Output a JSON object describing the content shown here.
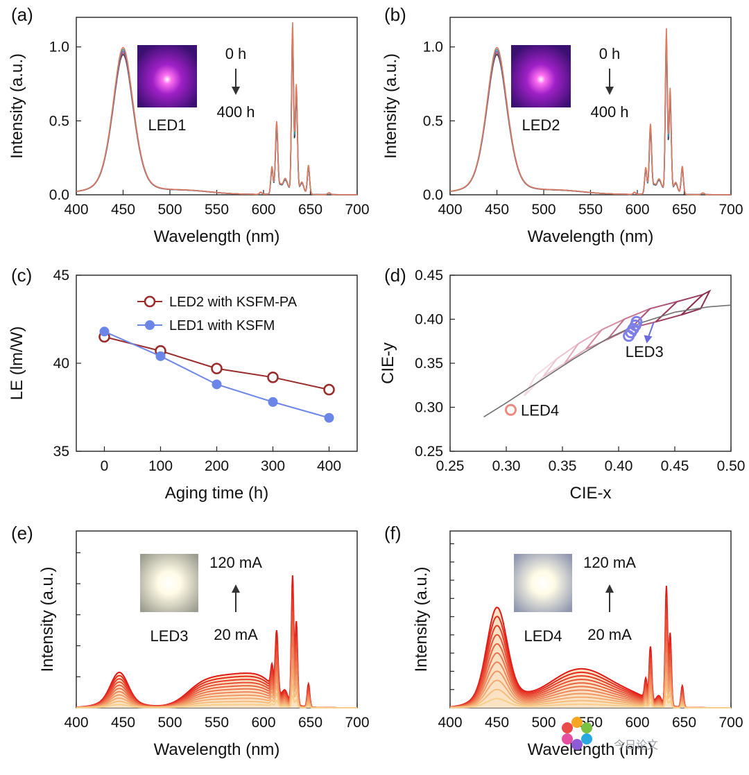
{
  "figure": {
    "panels": [
      {
        "id": "a",
        "letter": "(a)"
      },
      {
        "id": "b",
        "letter": "(b)"
      },
      {
        "id": "c",
        "letter": "(c)"
      },
      {
        "id": "d",
        "letter": "(d)"
      },
      {
        "id": "e",
        "letter": "(e)"
      },
      {
        "id": "f",
        "letter": "(f)"
      }
    ],
    "watermark": {
      "text": "今日论文"
    }
  },
  "chart_data": [
    {
      "id": "a",
      "type": "line",
      "xlabel": "Wavelength (nm)",
      "ylabel": "Intensity (a.u.)",
      "xlim": [
        400,
        700
      ],
      "ylim": [
        0,
        1.2
      ],
      "xticks": [
        400,
        450,
        500,
        550,
        600,
        650,
        700
      ],
      "yticks": [
        0.0,
        0.5,
        1.0
      ],
      "ytick_labels": [
        "0.0",
        "0.5",
        "1.0"
      ],
      "annotations": {
        "inset_label": "LED1",
        "time_start": "0 h",
        "time_end": "400 h"
      },
      "series_colors": [
        "#e07a5f",
        "#20a0a0",
        "#7a5cc0",
        "#c04060",
        "#3a3a3a"
      ],
      "peaks": [
        {
          "x": 450,
          "y": 1.0
        },
        {
          "x": 609,
          "y": 0.19
        },
        {
          "x": 614,
          "y": 0.48
        },
        {
          "x": 631,
          "y": 1.14
        },
        {
          "x": 635,
          "y": 0.73
        },
        {
          "x": 648,
          "y": 0.2
        }
      ]
    },
    {
      "id": "b",
      "type": "line",
      "xlabel": "Wavelength (nm)",
      "ylabel": "Intensity (a.u.)",
      "xlim": [
        400,
        700
      ],
      "ylim": [
        0,
        1.2
      ],
      "xticks": [
        400,
        450,
        500,
        550,
        600,
        650,
        700
      ],
      "yticks": [
        0.0,
        0.5,
        1.0
      ],
      "ytick_labels": [
        "0.0",
        "0.5",
        "1.0"
      ],
      "annotations": {
        "inset_label": "LED2",
        "time_start": "0 h",
        "time_end": "400 h"
      },
      "series_colors": [
        "#e07a5f",
        "#20a0a0",
        "#7a5cc0",
        "#c04060",
        "#3a3a3a"
      ],
      "peaks": [
        {
          "x": 450,
          "y": 1.0
        },
        {
          "x": 609,
          "y": 0.18
        },
        {
          "x": 614,
          "y": 0.46
        },
        {
          "x": 631,
          "y": 1.1
        },
        {
          "x": 635,
          "y": 0.7
        },
        {
          "x": 648,
          "y": 0.19
        }
      ]
    },
    {
      "id": "c",
      "type": "line",
      "xlabel": "Aging time (h)",
      "ylabel": "LE (lm/W)",
      "xlim": [
        -50,
        450
      ],
      "ylim": [
        35,
        45
      ],
      "xticks": [
        0,
        100,
        200,
        300,
        400
      ],
      "yticks": [
        35,
        40,
        45
      ],
      "series": [
        {
          "name": "LED2 with KSFM-PA",
          "color": "#9b2c2c",
          "marker": "open-circle",
          "x": [
            0,
            100,
            200,
            300,
            400
          ],
          "values": [
            41.5,
            40.7,
            39.7,
            39.2,
            38.5
          ]
        },
        {
          "name": "LED1 with KSFM",
          "color": "#6b86e6",
          "marker": "filled-circle",
          "x": [
            0,
            100,
            200,
            300,
            400
          ],
          "values": [
            41.8,
            40.4,
            38.8,
            37.8,
            36.9
          ]
        }
      ]
    },
    {
      "id": "d",
      "type": "scatter",
      "xlabel": "CIE-x",
      "ylabel": "CIE-y",
      "xlim": [
        0.25,
        0.5
      ],
      "ylim": [
        0.25,
        0.45
      ],
      "xticks": [
        0.25,
        0.3,
        0.35,
        0.4,
        0.45,
        0.5
      ],
      "xtick_labels": [
        "0.25",
        "0.30",
        "0.35",
        "0.40",
        "0.45",
        "0.50"
      ],
      "yticks": [
        0.25,
        0.3,
        0.35,
        0.4,
        0.45
      ],
      "ytick_labels": [
        "0.25",
        "0.30",
        "0.35",
        "0.40",
        "0.45"
      ],
      "locus": [
        [
          0.28,
          0.289
        ],
        [
          0.3,
          0.305
        ],
        [
          0.33,
          0.33
        ],
        [
          0.36,
          0.355
        ],
        [
          0.39,
          0.378
        ],
        [
          0.42,
          0.396
        ],
        [
          0.45,
          0.408
        ],
        [
          0.48,
          0.414
        ],
        [
          0.5,
          0.416
        ]
      ],
      "quad_lower": [
        [
          0.316,
          0.313
        ],
        [
          0.333,
          0.335
        ],
        [
          0.352,
          0.35
        ],
        [
          0.371,
          0.366
        ],
        [
          0.39,
          0.377
        ],
        [
          0.411,
          0.39
        ],
        [
          0.433,
          0.397
        ],
        [
          0.456,
          0.405
        ],
        [
          0.473,
          0.412
        ]
      ],
      "quad_upper": [
        [
          0.326,
          0.336
        ],
        [
          0.345,
          0.355
        ],
        [
          0.364,
          0.372
        ],
        [
          0.385,
          0.388
        ],
        [
          0.405,
          0.4
        ],
        [
          0.428,
          0.412
        ],
        [
          0.452,
          0.42
        ],
        [
          0.475,
          0.428
        ],
        [
          0.481,
          0.432
        ]
      ],
      "quad_colors": [
        "#f4dbe2",
        "#ecc4d0",
        "#e2abbe",
        "#d48ea6",
        "#c2728e",
        "#b05777",
        "#9b3d5f",
        "#8c2f52"
      ],
      "points": [
        {
          "name": "LED3",
          "color": "#7f7fe8",
          "x": [
            0.409,
            0.411,
            0.413,
            0.415,
            0.416
          ],
          "y": [
            0.381,
            0.385,
            0.389,
            0.393,
            0.397
          ]
        },
        {
          "name": "LED4",
          "color": "#ec8a80",
          "x": [
            0.304
          ],
          "y": [
            0.297
          ]
        }
      ],
      "labels": {
        "led3": "LED3",
        "led4": "LED4"
      }
    },
    {
      "id": "e",
      "type": "area",
      "xlabel": "Wavelength (nm)",
      "ylabel": "Intensity (a.u.)",
      "xlim": [
        400,
        700
      ],
      "xticks": [
        400,
        450,
        500,
        550,
        600,
        650,
        700
      ],
      "annotations": {
        "inset_label": "LED3",
        "current_high": "120 mA",
        "current_low": "20 mA"
      },
      "n_curves": 11,
      "scale_max": 1.0
    },
    {
      "id": "f",
      "type": "area",
      "xlabel": "Wavelength (nm)",
      "ylabel": "Intensity (a.u.)",
      "xlim": [
        400,
        700
      ],
      "xticks": [
        400,
        450,
        500,
        550,
        600,
        650,
        700
      ],
      "annotations": {
        "inset_label": "LED4",
        "current_high": "120 mA",
        "current_low": "20 mA"
      },
      "n_curves": 11,
      "scale_max": 1.0
    }
  ]
}
